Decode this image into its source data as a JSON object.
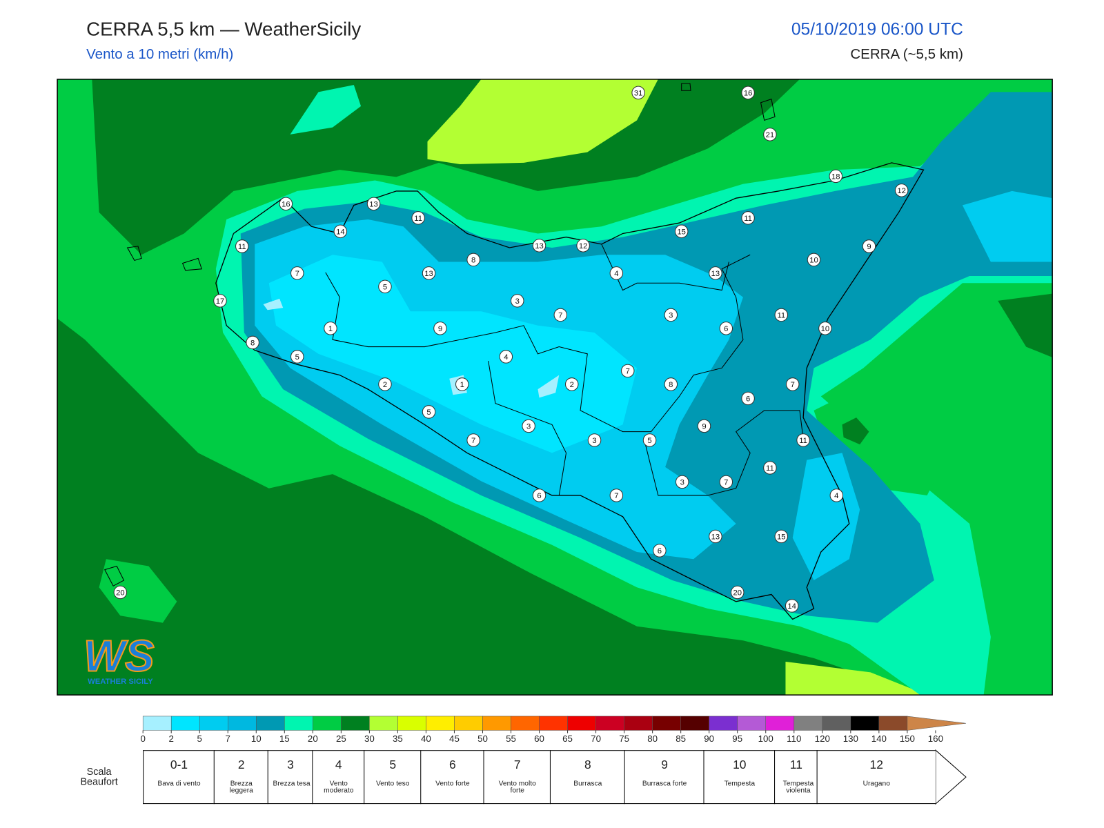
{
  "header": {
    "title": "CERRA 5,5 km — WeatherSicily",
    "subtitle": "Vento a 10 metri (km/h)",
    "datetime": "05/10/2019 06:00 UTC",
    "model": "CERRA (~5,5 km)"
  },
  "stations": [
    31,
    16,
    21,
    18,
    12,
    16,
    13,
    11,
    14,
    11,
    15,
    11,
    13,
    12,
    9,
    8,
    7,
    13,
    4,
    13,
    10,
    5,
    3,
    7,
    3,
    11,
    17,
    1,
    9,
    6,
    10,
    8,
    5,
    4,
    7,
    2,
    1,
    2,
    8,
    7,
    6,
    5,
    3,
    9,
    7,
    3,
    5,
    11,
    11,
    3,
    7,
    6,
    7,
    4,
    13,
    15,
    6,
    20,
    14,
    20
  ],
  "legend": {
    "ticks": [
      0,
      2,
      5,
      7,
      10,
      15,
      20,
      25,
      30,
      35,
      40,
      45,
      50,
      55,
      60,
      65,
      70,
      75,
      80,
      85,
      90,
      95,
      100,
      110,
      120,
      130,
      140,
      150,
      160
    ],
    "colors": [
      "#a6f0ff",
      "#00e5ff",
      "#00ccf0",
      "#00b8e0",
      "#0099b3",
      "#00f5b0",
      "#00cc44",
      "#008020",
      "#b3ff33",
      "#d9ff00",
      "#ffee00",
      "#ffcc00",
      "#ff9900",
      "#ff6600",
      "#ff3300",
      "#ee0000",
      "#cc0022",
      "#aa0011",
      "#770000",
      "#550000",
      "#7b2fd0",
      "#b45ad6",
      "#e020d8",
      "#808080",
      "#606060",
      "#000000",
      "#8b4a2a",
      "#cd8548"
    ]
  },
  "beaufort": {
    "title": "Scala Beaufort",
    "levels": [
      {
        "number": "0-1",
        "label": "Bava di vento"
      },
      {
        "number": 2,
        "label": "Brezza leggera"
      },
      {
        "number": 3,
        "label": "Brezza tesa"
      },
      {
        "number": 4,
        "label": "Vento moderato"
      },
      {
        "number": 5,
        "label": "Vento teso"
      },
      {
        "number": 6,
        "label": "Vento forte"
      },
      {
        "number": 7,
        "label": "Vento molto forte"
      },
      {
        "number": 8,
        "label": "Burrasca"
      },
      {
        "number": 9,
        "label": "Burrasca forte"
      },
      {
        "number": 10,
        "label": "Tempesta"
      },
      {
        "number": 11,
        "label": "Tempesta violenta"
      },
      {
        "number": 12,
        "label": "Uragano"
      }
    ]
  },
  "logo": {
    "mark": "WS",
    "text": "WEATHER SICILY"
  }
}
